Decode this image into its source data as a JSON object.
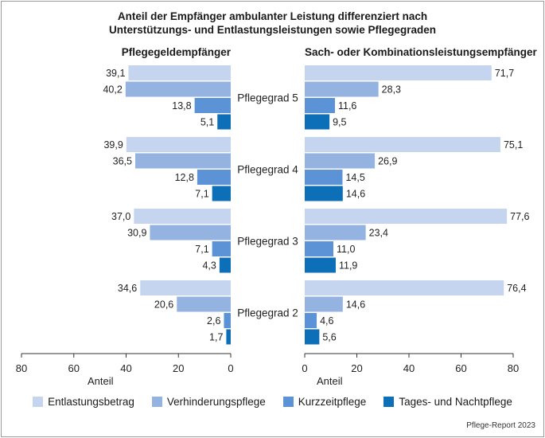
{
  "title_lines": [
    "Anteil der Empfänger ambulanter Leistung differenziert nach",
    "Unterstützungs- und Entlastungsleistungen sowie Pflegegraden"
  ],
  "source": "Pflege-Report 2023",
  "colors": {
    "Entlastungsbetrag": "#c5d4ef",
    "Verhinderungspflege": "#94b3e1",
    "Kurzzeitpflege": "#5c92d6",
    "Tages- und Nachtpflege": "#0e6fb9"
  },
  "chart_data": [
    {
      "type": "bar",
      "orientation": "horizontal",
      "direction": "reversed",
      "title": "Pflegegeldempfänger",
      "xlabel": "Anteil",
      "xlim": [
        0,
        80
      ],
      "xticks": [
        80,
        60,
        40,
        20,
        0
      ],
      "categories": [
        "Pflegegrad 5",
        "Pflegegrad 4",
        "Pflegegrad 3",
        "Pflegegrad 2"
      ],
      "series": [
        {
          "name": "Entlastungsbetrag",
          "values": [
            39.1,
            39.9,
            37.0,
            34.6
          ],
          "labels": [
            "39,1",
            "39,9",
            "37,0",
            "34,6"
          ]
        },
        {
          "name": "Verhinderungspflege",
          "values": [
            40.2,
            36.5,
            30.9,
            20.6
          ],
          "labels": [
            "40,2",
            "36,5",
            "30,9",
            "20,6"
          ]
        },
        {
          "name": "Kurzzeitpflege",
          "values": [
            13.8,
            12.8,
            7.1,
            2.6
          ],
          "labels": [
            "13,8",
            "12,8",
            "7,1",
            "2,6"
          ]
        },
        {
          "name": "Tages- und Nachtpflege",
          "values": [
            5.1,
            7.1,
            4.3,
            1.7
          ],
          "labels": [
            "5,1",
            "7,1",
            "4,3",
            "1,7"
          ]
        }
      ]
    },
    {
      "type": "bar",
      "orientation": "horizontal",
      "direction": "normal",
      "title": "Sach- oder Kombinationsleistungsempfänger",
      "xlabel": "Anteil",
      "xlim": [
        0,
        80
      ],
      "xticks": [
        0,
        20,
        40,
        60,
        80
      ],
      "categories": [
        "Pflegegrad 5",
        "Pflegegrad 4",
        "Pflegegrad 3",
        "Pflegegrad 2"
      ],
      "series": [
        {
          "name": "Entlastungsbetrag",
          "values": [
            71.7,
            75.1,
            77.6,
            76.4
          ],
          "labels": [
            "71,7",
            "75,1",
            "77,6",
            "76,4"
          ]
        },
        {
          "name": "Verhinderungspflege",
          "values": [
            28.3,
            26.9,
            23.4,
            14.6
          ],
          "labels": [
            "28,3",
            "26,9",
            "23,4",
            "14,6"
          ]
        },
        {
          "name": "Kurzzeitpflege",
          "values": [
            11.6,
            14.5,
            11.0,
            4.6
          ],
          "labels": [
            "11,6",
            "14,5",
            "11,0",
            "4,6"
          ]
        },
        {
          "name": "Tages- und Nachtpflege",
          "values": [
            9.5,
            14.6,
            11.9,
            5.6
          ],
          "labels": [
            "9,5",
            "14,6",
            "11,9",
            "5,6"
          ]
        }
      ]
    }
  ]
}
